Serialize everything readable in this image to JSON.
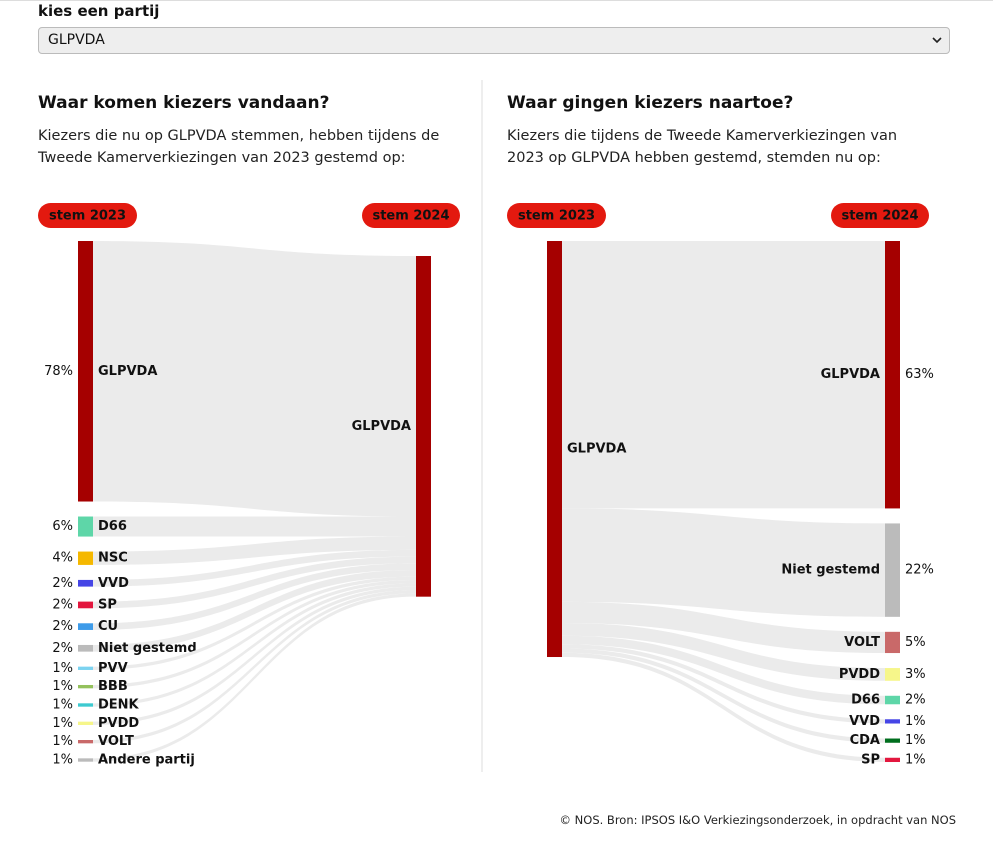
{
  "header": {
    "label": "kies een partij",
    "selected": "GLPVDA"
  },
  "chart_data": [
    {
      "type": "sankey",
      "title": "Waar komen kiezers vandaan?",
      "subtitle": "Kiezers die nu op GLPVDA stemmen, hebben tijdens de Tweede Kamerverkiezingen van 2023 gestemd op:",
      "source_label": "stem 2023",
      "target_label": "stem 2024",
      "target": "GLPVDA",
      "target_color": "#a50000",
      "categories": [
        "GLPVDA",
        "D66",
        "NSC",
        "VVD",
        "SP",
        "CU",
        "Niet gestemd",
        "PVV",
        "BBB",
        "DENK",
        "PVDD",
        "VOLT",
        "Andere partij"
      ],
      "values": [
        78,
        6,
        4,
        2,
        2,
        2,
        2,
        1,
        1,
        1,
        1,
        1,
        1
      ],
      "value_labels": [
        "78%",
        "6%",
        "4%",
        "2%",
        "2%",
        "2%",
        "2%",
        "1%",
        "1%",
        "1%",
        "1%",
        "1%",
        "1%"
      ],
      "colors": [
        "#a50000",
        "#5ed6a8",
        "#f5b800",
        "#4545e6",
        "#e3173e",
        "#3d9be9",
        "#bbbbbb",
        "#7cd3f0",
        "#94c15c",
        "#3dcad0",
        "#f6f68a",
        "#c96969",
        "#bbbbbb"
      ]
    },
    {
      "type": "sankey",
      "title": "Waar gingen kiezers naartoe?",
      "subtitle": "Kiezers die tijdens de Tweede Kamerverkiezingen van 2023 op GLPVDA hebben gestemd, stemden nu op:",
      "source_label": "stem 2023",
      "target_label": "stem 2024",
      "source": "GLPVDA",
      "source_color": "#a50000",
      "categories": [
        "GLPVDA",
        "Niet gestemd",
        "VOLT",
        "PVDD",
        "D66",
        "VVD",
        "CDA",
        "SP"
      ],
      "values": [
        63,
        22,
        5,
        3,
        2,
        1,
        1,
        1
      ],
      "value_labels": [
        "63%",
        "22%",
        "5%",
        "3%",
        "2%",
        "1%",
        "1%",
        "1%"
      ],
      "colors": [
        "#a50000",
        "#bbbbbb",
        "#c96969",
        "#f6f68a",
        "#5ed6a8",
        "#4545e6",
        "#006e1e",
        "#e3173e"
      ]
    }
  ],
  "footer": "© NOS. Bron: IPSOS I&O Verkiezingsonderzoek, in opdracht van NOS"
}
